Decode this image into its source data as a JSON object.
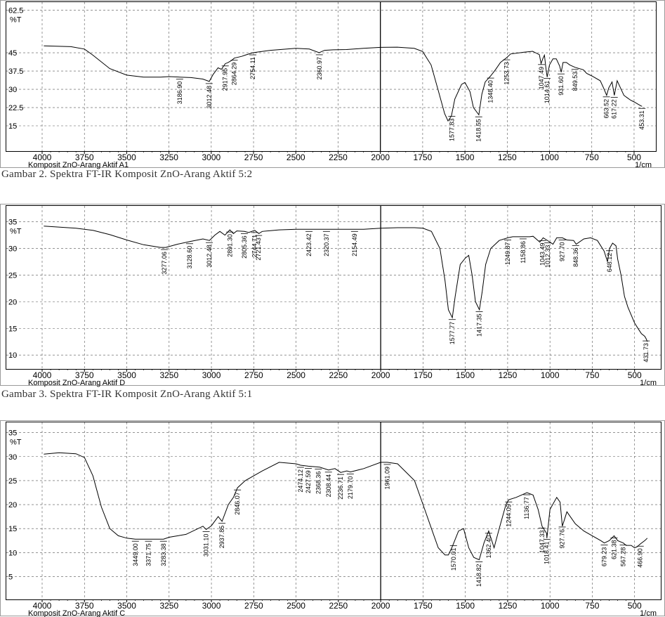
{
  "chart_data": [
    {
      "type": "line",
      "title": "Komposit ZnO-Arang Aktif A1",
      "xlabel": "1/cm",
      "ylabel": "%T",
      "xlim": [
        4000,
        450
      ],
      "ylim": [
        7.5,
        65.5
      ],
      "x_ticks": [
        4000,
        3750,
        3500,
        3250,
        3000,
        2750,
        2500,
        2250,
        2000,
        1750,
        1500,
        1250,
        1000,
        750,
        500
      ],
      "y_ticks": [
        62.5,
        45,
        37.5,
        30,
        22.5,
        15
      ],
      "grid": true,
      "divider_x": 2000,
      "series": [
        {
          "x": [
            3990,
            3830,
            3750,
            3700,
            3600,
            3500,
            3400,
            3300,
            3250,
            3187,
            3120,
            3050,
            3012,
            2990,
            2960,
            2940,
            2917,
            2900,
            2880,
            2864,
            2820,
            2800,
            2754,
            2650,
            2500,
            2420,
            2362,
            2330,
            2280,
            2200,
            2100,
            2000,
            1900,
            1800,
            1750,
            1700,
            1660,
            1620,
            1600,
            1580,
            1560,
            1520,
            1500,
            1470,
            1450,
            1418,
            1400,
            1380,
            1348,
            1320,
            1290,
            1253,
            1230,
            1150,
            1100,
            1060,
            1050,
            1040,
            1030,
            1020,
            1014,
            1000,
            980,
            960,
            940,
            931,
            920,
            900,
            880,
            849,
            800,
            780,
            750,
            700,
            680,
            662,
            650,
            630,
            617,
            600,
            580,
            560,
            540,
            520,
            500,
            480,
            460,
            453
          ],
          "y": [
            47.8,
            47.5,
            46.5,
            44,
            38.5,
            35.8,
            35,
            35,
            35.2,
            35,
            34.8,
            34.2,
            33.2,
            36,
            38.8,
            38.2,
            40.5,
            41,
            41.8,
            42.8,
            43.5,
            44,
            45,
            46,
            46.8,
            46.5,
            45,
            46,
            46.2,
            46.3,
            46.8,
            47.2,
            47.3,
            46.8,
            45.5,
            40,
            30,
            20,
            17,
            19,
            26,
            32,
            32.8,
            29,
            22.5,
            19.5,
            28,
            33,
            35.5,
            38,
            41,
            43,
            44.5,
            45.2,
            45.6,
            44.2,
            40.5,
            42.5,
            44,
            38,
            35,
            40,
            42.5,
            42.5,
            39.5,
            37,
            41,
            41,
            40,
            39,
            38,
            36.5,
            35.5,
            33.5,
            30.5,
            27.5,
            30.5,
            33,
            27.5,
            33.5,
            30.5,
            27.5,
            26.5,
            25.5,
            24.8,
            24,
            23.2,
            23
          ]
        }
      ],
      "peak_labels": [
        {
          "x": 3186.9,
          "text": "3186.90"
        },
        {
          "x": 3012.4,
          "text": "3012.48"
        },
        {
          "x": 2917.5,
          "text": "2917.95"
        },
        {
          "x": 2864.2,
          "text": "2864.29"
        },
        {
          "x": 2754.1,
          "text": "2754.11"
        },
        {
          "x": 2360.9,
          "text": "2360.97"
        },
        {
          "x": 1577.8,
          "text": "1577.83"
        },
        {
          "x": 1418.5,
          "text": "1418.55"
        },
        {
          "x": 1348.5,
          "text": "1348.40"
        },
        {
          "x": 1253.7,
          "text": "1253.73"
        },
        {
          "x": 1047.4,
          "text": "1047.49"
        },
        {
          "x": 1014.6,
          "text": "1014.61"
        },
        {
          "x": 931.6,
          "text": "931.60"
        },
        {
          "x": 849.5,
          "text": "849.53"
        },
        {
          "x": 663.5,
          "text": "663.52"
        },
        {
          "x": 617.2,
          "text": "617.22"
        },
        {
          "x": 453.3,
          "text": "453.31"
        }
      ]
    },
    {
      "type": "line",
      "title": "Komposit ZnO-Arang Aktif D",
      "xlabel": "1/cm",
      "ylabel": "%T",
      "xlim": [
        4000,
        420
      ],
      "ylim": [
        8.7,
        37.6
      ],
      "x_ticks": [
        4000,
        3750,
        3500,
        3250,
        3000,
        2750,
        2500,
        2250,
        2000,
        1750,
        1500,
        1250,
        1000,
        750,
        500
      ],
      "y_ticks": [
        35,
        30,
        25,
        20,
        15,
        10
      ],
      "grid": true,
      "divider_x": 2000,
      "series": [
        {
          "x": [
            3990,
            3800,
            3700,
            3600,
            3500,
            3400,
            3300,
            3270,
            3200,
            3128,
            3050,
            3012,
            2980,
            2950,
            2920,
            2891,
            2870,
            2850,
            2805,
            2780,
            2744,
            2720,
            2700,
            2600,
            2500,
            2423,
            2320,
            2250,
            2154,
            2100,
            2000,
            1900,
            1800,
            1750,
            1700,
            1650,
            1620,
            1600,
            1577,
            1560,
            1530,
            1500,
            1480,
            1460,
            1440,
            1417,
            1400,
            1380,
            1350,
            1300,
            1249,
            1220,
            1160,
            1120,
            1100,
            1060,
            1040,
            1010,
            982,
            960,
            927,
            900,
            860,
            845,
            800,
            760,
            720,
            680,
            660,
            648,
            630,
            610,
            600,
            580,
            560,
            540,
            520,
            500,
            480,
            460,
            440,
            431,
            425
          ],
          "y": [
            34.2,
            33.8,
            33.4,
            32.6,
            31.6,
            30.7,
            30.2,
            30.2,
            30.8,
            31.3,
            31.8,
            31.5,
            32.5,
            33.2,
            32.5,
            33.5,
            32.8,
            33.3,
            33.2,
            33,
            33.4,
            32.8,
            33.2,
            33.5,
            33.6,
            33.6,
            33.6,
            33.6,
            33.6,
            33.6,
            33.8,
            33.9,
            33.9,
            33.8,
            33.2,
            30,
            24,
            18.5,
            17,
            21,
            27,
            28.2,
            28.7,
            25,
            20,
            18.5,
            22,
            27,
            30,
            31.5,
            32,
            32.2,
            32.2,
            32.2,
            32.3,
            31.2,
            32,
            31.4,
            30.8,
            32,
            32,
            31.6,
            31.5,
            30.8,
            31.8,
            32,
            31.5,
            29.5,
            27.5,
            30,
            31,
            30.5,
            28,
            25,
            21,
            19,
            17.5,
            16,
            15,
            14,
            13.5,
            13,
            12.5
          ]
        }
      ],
      "peak_labels": [
        {
          "x": 3277.6,
          "text": "3277.06"
        },
        {
          "x": 3128.6,
          "text": "3128.60"
        },
        {
          "x": 3012.4,
          "text": "3012.48"
        },
        {
          "x": 2891.3,
          "text": "2891.30"
        },
        {
          "x": 2805.3,
          "text": "2805.36"
        },
        {
          "x": 2744.7,
          "text": "2744.71"
        },
        {
          "x": 2721.5,
          "text": "2721.43"
        },
        {
          "x": 2423.4,
          "text": "2423.42"
        },
        {
          "x": 2320.3,
          "text": "2320.37"
        },
        {
          "x": 2154.4,
          "text": "2154.49"
        },
        {
          "x": 1577.8,
          "text": "1577.77"
        },
        {
          "x": 1417.7,
          "text": "1417.35"
        },
        {
          "x": 1249.8,
          "text": "1249.87"
        },
        {
          "x": 1158.9,
          "text": "1158.86"
        },
        {
          "x": 1043.4,
          "text": "1043.49"
        },
        {
          "x": 1012.3,
          "text": "1012.33"
        },
        {
          "x": 927.7,
          "text": "927.70"
        },
        {
          "x": 848.3,
          "text": "848.36"
        },
        {
          "x": 648.1,
          "text": "648.12"
        },
        {
          "x": 431.7,
          "text": "431.73"
        }
      ]
    },
    {
      "type": "line",
      "title": "Komposit ZnO-Arang Aktif C",
      "xlabel": "1/cm",
      "ylabel": "%T",
      "xlim": [
        4000,
        420
      ],
      "ylim": [
        1.7,
        36.7
      ],
      "x_ticks": [
        4000,
        3750,
        3500,
        3250,
        3000,
        2750,
        2500,
        2250,
        2000,
        1750,
        1500,
        1250,
        1000,
        750,
        500
      ],
      "y_ticks": [
        35,
        30,
        25,
        20,
        15,
        10,
        5
      ],
      "grid": true,
      "divider_x": 2000,
      "series": [
        {
          "x": [
            3990,
            3900,
            3800,
            3750,
            3700,
            3650,
            3600,
            3550,
            3500,
            3449,
            3371,
            3283,
            3250,
            3150,
            3050,
            3031,
            3000,
            2960,
            2937,
            2900,
            2870,
            2846,
            2800,
            2700,
            2600,
            2500,
            2474,
            2427,
            2360,
            2308,
            2270,
            2236,
            2200,
            2179,
            2100,
            2000,
            1961,
            1900,
            1800,
            1750,
            1700,
            1660,
            1620,
            1600,
            1580,
            1540,
            1510,
            1480,
            1450,
            1418,
            1390,
            1362,
            1330,
            1300,
            1260,
            1244,
            1200,
            1136,
            1100,
            1070,
            1047,
            1020,
            1018,
            1000,
            960,
            940,
            927,
            900,
            850,
            800,
            750,
            700,
            679,
            650,
            621,
            600,
            567,
            550,
            520,
            500,
            485,
            466,
            440,
            425
          ],
          "y": [
            30.5,
            30.8,
            30.6,
            29.8,
            26,
            19.5,
            15,
            13.5,
            13,
            12.8,
            12.8,
            12.8,
            13.2,
            13.8,
            15.5,
            14.8,
            15.6,
            17.5,
            16.5,
            20,
            21.5,
            23.5,
            25,
            27,
            28.8,
            28.5,
            28.2,
            28,
            27.8,
            27.2,
            27.5,
            26.7,
            27,
            26.8,
            27.5,
            28.8,
            28.8,
            28.5,
            25,
            20,
            15,
            11,
            9.5,
            9.5,
            11,
            14.5,
            15,
            11,
            9,
            8.5,
            12,
            14.5,
            11,
            15,
            20,
            21,
            21.5,
            22.5,
            22,
            19,
            15.5,
            14,
            13,
            19,
            21.5,
            20.5,
            15.5,
            18.5,
            16,
            14.5,
            13.5,
            12.5,
            12,
            12.5,
            13.5,
            12.5,
            12,
            11.5,
            11.5,
            11,
            11.2,
            11.8,
            12.5,
            13
          ]
        }
      ],
      "peak_labels": [
        {
          "x": 3449.0,
          "text": "3449.00"
        },
        {
          "x": 3371.7,
          "text": "3371.75"
        },
        {
          "x": 3283.3,
          "text": "3283.38"
        },
        {
          "x": 3031.0,
          "text": "3031.10"
        },
        {
          "x": 2937.8,
          "text": "2937.85"
        },
        {
          "x": 2846.1,
          "text": "2846.07"
        },
        {
          "x": 2474.1,
          "text": "2474.12"
        },
        {
          "x": 2427.5,
          "text": "2427.59"
        },
        {
          "x": 2368.3,
          "text": "2368.36"
        },
        {
          "x": 2308.4,
          "text": "2308.44"
        },
        {
          "x": 2236.7,
          "text": "2236.71"
        },
        {
          "x": 2179.7,
          "text": "2179.70"
        },
        {
          "x": 1961.0,
          "text": "1961.09"
        },
        {
          "x": 1570.0,
          "text": "1570.01"
        },
        {
          "x": 1418.8,
          "text": "1418.82"
        },
        {
          "x": 1362.4,
          "text": "1362.40"
        },
        {
          "x": 1244.1,
          "text": "1244.09"
        },
        {
          "x": 1136.7,
          "text": "1136.77"
        },
        {
          "x": 1047.3,
          "text": "1047.33"
        },
        {
          "x": 1018.4,
          "text": "1018.41"
        },
        {
          "x": 927.7,
          "text": "927.76"
        },
        {
          "x": 679.2,
          "text": "679.23"
        },
        {
          "x": 621.3,
          "text": "621.38"
        },
        {
          "x": 567.2,
          "text": "567.28"
        },
        {
          "x": 466.9,
          "text": "466.90"
        }
      ]
    }
  ],
  "captions": [
    "Gambar 2. Spektra FT-IR Komposit ZnO-Arang Aktif 5:2",
    "Gambar 3. Spektra FT-IR Komposit ZnO-Arang Aktif 5:1"
  ]
}
